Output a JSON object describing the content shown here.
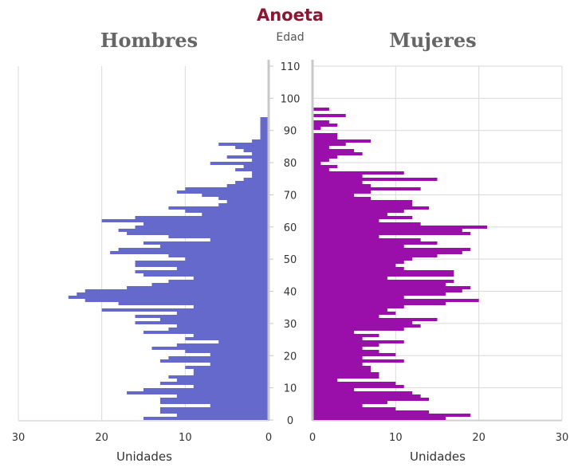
{
  "chart_data": {
    "type": "bar",
    "orientation": "horizontal-population-pyramid",
    "title": "Anoeta",
    "center_axis_label": "Edad",
    "ages": [
      0,
      1,
      2,
      3,
      4,
      5,
      6,
      7,
      8,
      9,
      10,
      11,
      12,
      13,
      14,
      15,
      16,
      17,
      18,
      19,
      20,
      21,
      22,
      23,
      24,
      25,
      26,
      27,
      28,
      29,
      30,
      31,
      32,
      33,
      34,
      35,
      36,
      37,
      38,
      39,
      40,
      41,
      42,
      43,
      44,
      45,
      46,
      47,
      48,
      49,
      50,
      51,
      52,
      53,
      54,
      55,
      56,
      57,
      58,
      59,
      60,
      61,
      62,
      63,
      64,
      65,
      66,
      67,
      68,
      69,
      70,
      71,
      72,
      73,
      74,
      75,
      76,
      77,
      78,
      79,
      80,
      81,
      82,
      83,
      84,
      85,
      86,
      87,
      88,
      89,
      90,
      91,
      92,
      93,
      94,
      95,
      96,
      97,
      98,
      99,
      100,
      101,
      102,
      103,
      104,
      105,
      106,
      107,
      108,
      109,
      110
    ],
    "y_ticks": [
      0,
      10,
      20,
      30,
      40,
      50,
      60,
      70,
      80,
      90,
      100,
      110
    ],
    "series": [
      {
        "name": "Hombres",
        "color": "#6669cc",
        "xlabel": "Unidades",
        "x_ticks": [
          "30",
          "20",
          "10",
          "0"
        ],
        "xlim": [
          0,
          30
        ],
        "values": [
          15,
          11,
          13,
          13,
          7,
          13,
          13,
          11,
          17,
          15,
          9,
          13,
          11,
          12,
          9,
          9,
          10,
          7,
          13,
          12,
          7,
          10,
          14,
          11,
          6,
          10,
          9,
          15,
          12,
          11,
          16,
          13,
          16,
          11,
          20,
          9,
          18,
          22,
          24,
          23,
          22,
          17,
          14,
          12,
          9,
          15,
          16,
          11,
          16,
          16,
          10,
          12,
          19,
          18,
          13,
          15,
          7,
          12,
          17,
          18,
          16,
          15,
          20,
          16,
          8,
          10,
          12,
          6,
          5,
          6,
          8,
          11,
          10,
          5,
          4,
          3,
          2,
          2,
          4,
          3,
          7,
          2,
          5,
          2,
          3,
          4,
          6,
          2,
          1,
          1,
          1,
          1,
          1,
          1,
          1,
          0,
          0,
          0,
          0,
          0,
          0,
          0,
          0,
          0,
          0,
          0,
          0,
          0,
          0,
          0,
          0
        ]
      },
      {
        "name": "Mujeres",
        "color": "#9a0ea9",
        "xlabel": "Unidades",
        "x_ticks": [
          "0",
          "10",
          "20",
          "30"
        ],
        "xlim": [
          0,
          30
        ],
        "values": [
          16,
          19,
          14,
          10,
          6,
          9,
          14,
          13,
          12,
          5,
          11,
          10,
          3,
          8,
          8,
          7,
          7,
          6,
          11,
          6,
          10,
          8,
          6,
          8,
          11,
          6,
          8,
          5,
          11,
          13,
          12,
          15,
          8,
          10,
          9,
          11,
          16,
          20,
          11,
          16,
          18,
          19,
          16,
          17,
          9,
          17,
          17,
          11,
          10,
          11,
          12,
          15,
          18,
          19,
          11,
          15,
          13,
          8,
          19,
          18,
          21,
          13,
          8,
          12,
          9,
          11,
          14,
          12,
          12,
          7,
          5,
          7,
          13,
          7,
          6,
          15,
          6,
          11,
          2,
          3,
          1,
          2,
          3,
          6,
          5,
          2,
          4,
          7,
          3,
          3,
          0,
          1,
          3,
          2,
          0,
          4,
          0,
          2,
          0,
          0,
          0,
          0,
          0,
          0,
          0,
          0,
          0,
          0,
          0,
          0,
          0
        ]
      }
    ]
  }
}
